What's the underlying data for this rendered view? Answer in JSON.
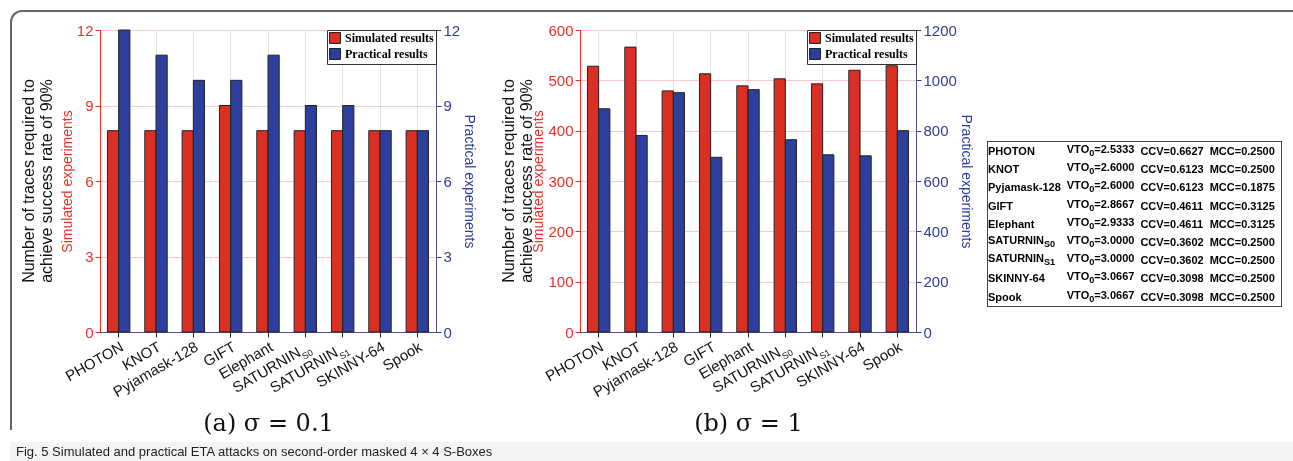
{
  "chart_data": [
    {
      "type": "bar",
      "categories": [
        "PHOTON",
        "KNOT",
        "Pyjamask-128",
        "GIFT",
        "Elephant",
        "SATURNIN$_{S0}$",
        "SATURNIN$_{S1}$",
        "SKINNY-64",
        "Spook"
      ],
      "series": [
        {
          "name": "Simulated results",
          "color": "#d92f24",
          "values": [
            8,
            8,
            8,
            9,
            8,
            8,
            8,
            8,
            8
          ]
        },
        {
          "name": "Practical results",
          "color": "#2d3f9c",
          "axis": "y2",
          "values": [
            12,
            11,
            10,
            10,
            11,
            9,
            9,
            8,
            8
          ]
        }
      ],
      "ylim": [
        0,
        12
      ],
      "yticks": [
        0,
        3,
        6,
        9,
        12
      ],
      "y2lim": [
        0,
        12
      ],
      "y2ticks": [
        0,
        3,
        6,
        9,
        12
      ],
      "ylabel": "Simulated experiments",
      "y2label": "Practical experiments",
      "xlabel": "(a) σ = 0.1",
      "annotations": [
        "Number of traces required to achieve success rate of 90%",
        "Fig. 5 Simulated and practical ETA attacks on second-order masked 4 × 4 S-Boxes"
      ],
      "legend": "top right",
      "grid": true
    },
    {
      "type": "bar",
      "categories": [
        "PHOTON",
        "KNOT",
        "Pyjamask-128",
        "GIFT",
        "Elephant",
        "SATURNIN$_{S0}$",
        "SATURNIN$_{S1}$",
        "SKINNY-64",
        "Spook"
      ],
      "series": [
        {
          "name": "Simulated results",
          "color": "#d92f24",
          "values": [
            528,
            566,
            479,
            513,
            489,
            503,
            493,
            520,
            529
          ]
        },
        {
          "name": "Practical results",
          "color": "#2d3f9c",
          "axis": "y2",
          "values": [
            887,
            781,
            951,
            694,
            963,
            764,
            704,
            700,
            800
          ]
        }
      ],
      "ylim": [
        0,
        600
      ],
      "yticks": [
        0,
        100,
        200,
        300,
        400,
        500,
        600
      ],
      "y2lim": [
        0,
        1200
      ],
      "y2ticks": [
        0,
        200,
        400,
        600,
        800,
        1000,
        1200
      ],
      "ylabel": "Simulated experiments",
      "y2label": "Practical experiments",
      "xlabel": "(b) σ = 1",
      "annotations": [
        "Number of traces required to achieve success rate of 90%"
      ],
      "legend": "top right",
      "grid": true
    },
    {
      "type": "other",
      "annotations": [
        "PHOTON VTO$_{0}$=2.5333 CCV=0.6627 MCC=0.2500",
        "KNOT VTO$_{0}$=2.6000 CCV=0.6123 MCC=0.2500",
        "Pyjamask-128 VTO$_{0}$=2.6000 CCV=0.6123 MCC=0.1875",
        "GIFT VTO$_{0}$=2.8667 CCV=0.4611 MCC=0.3125",
        "Elephant VTO$_{0}$=2.9333 CCV=0.4611 MCC=0.3125",
        "SATURNIN$_{S0}$ VTO$_{0}$=3.0000 CCV=0.3602 MCC=0.2500",
        "SATURNIN$_{S1}$ VTO$_{0}$=3.0000 CCV=0.3602 MCC=0.2500",
        "SKINNY-64 VTO$_{0}$=3.0667 CCV=0.3098 MCC=0.2500",
        "Spook VTO$_{0}$=3.0667 CCV=0.3098 MCC=0.2500"
      ]
    }
  ]
}
